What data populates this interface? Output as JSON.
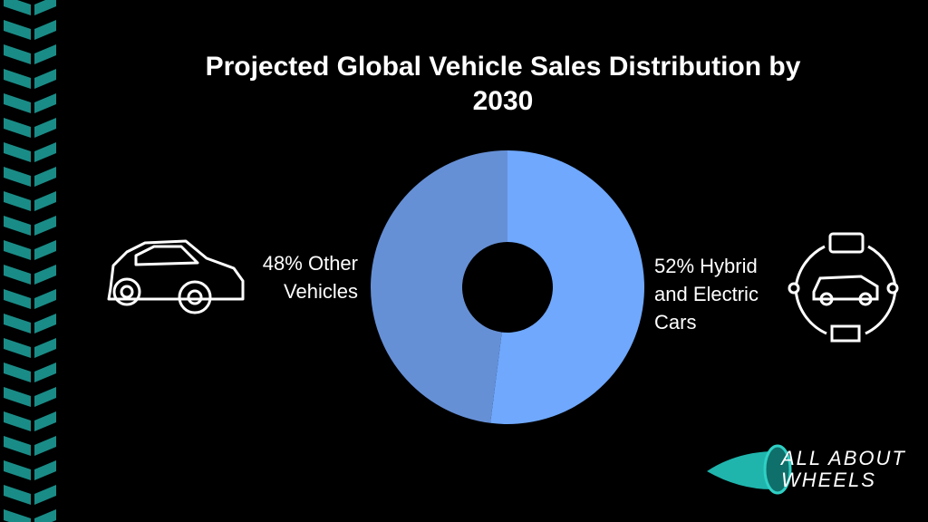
{
  "chart_data": {
    "type": "donut",
    "title": "Projected Global Vehicle Sales Distribution by 2030",
    "categories": [
      "Hybrid and Electric Cars",
      "Other Vehicles"
    ],
    "values": [
      52,
      48
    ],
    "value_labels": [
      "52%",
      "48%"
    ],
    "colors": [
      "#6fa8fd",
      "#6690d6"
    ]
  },
  "logo": {
    "line1": "ALL ABOUT",
    "line2": "WHEELS"
  }
}
